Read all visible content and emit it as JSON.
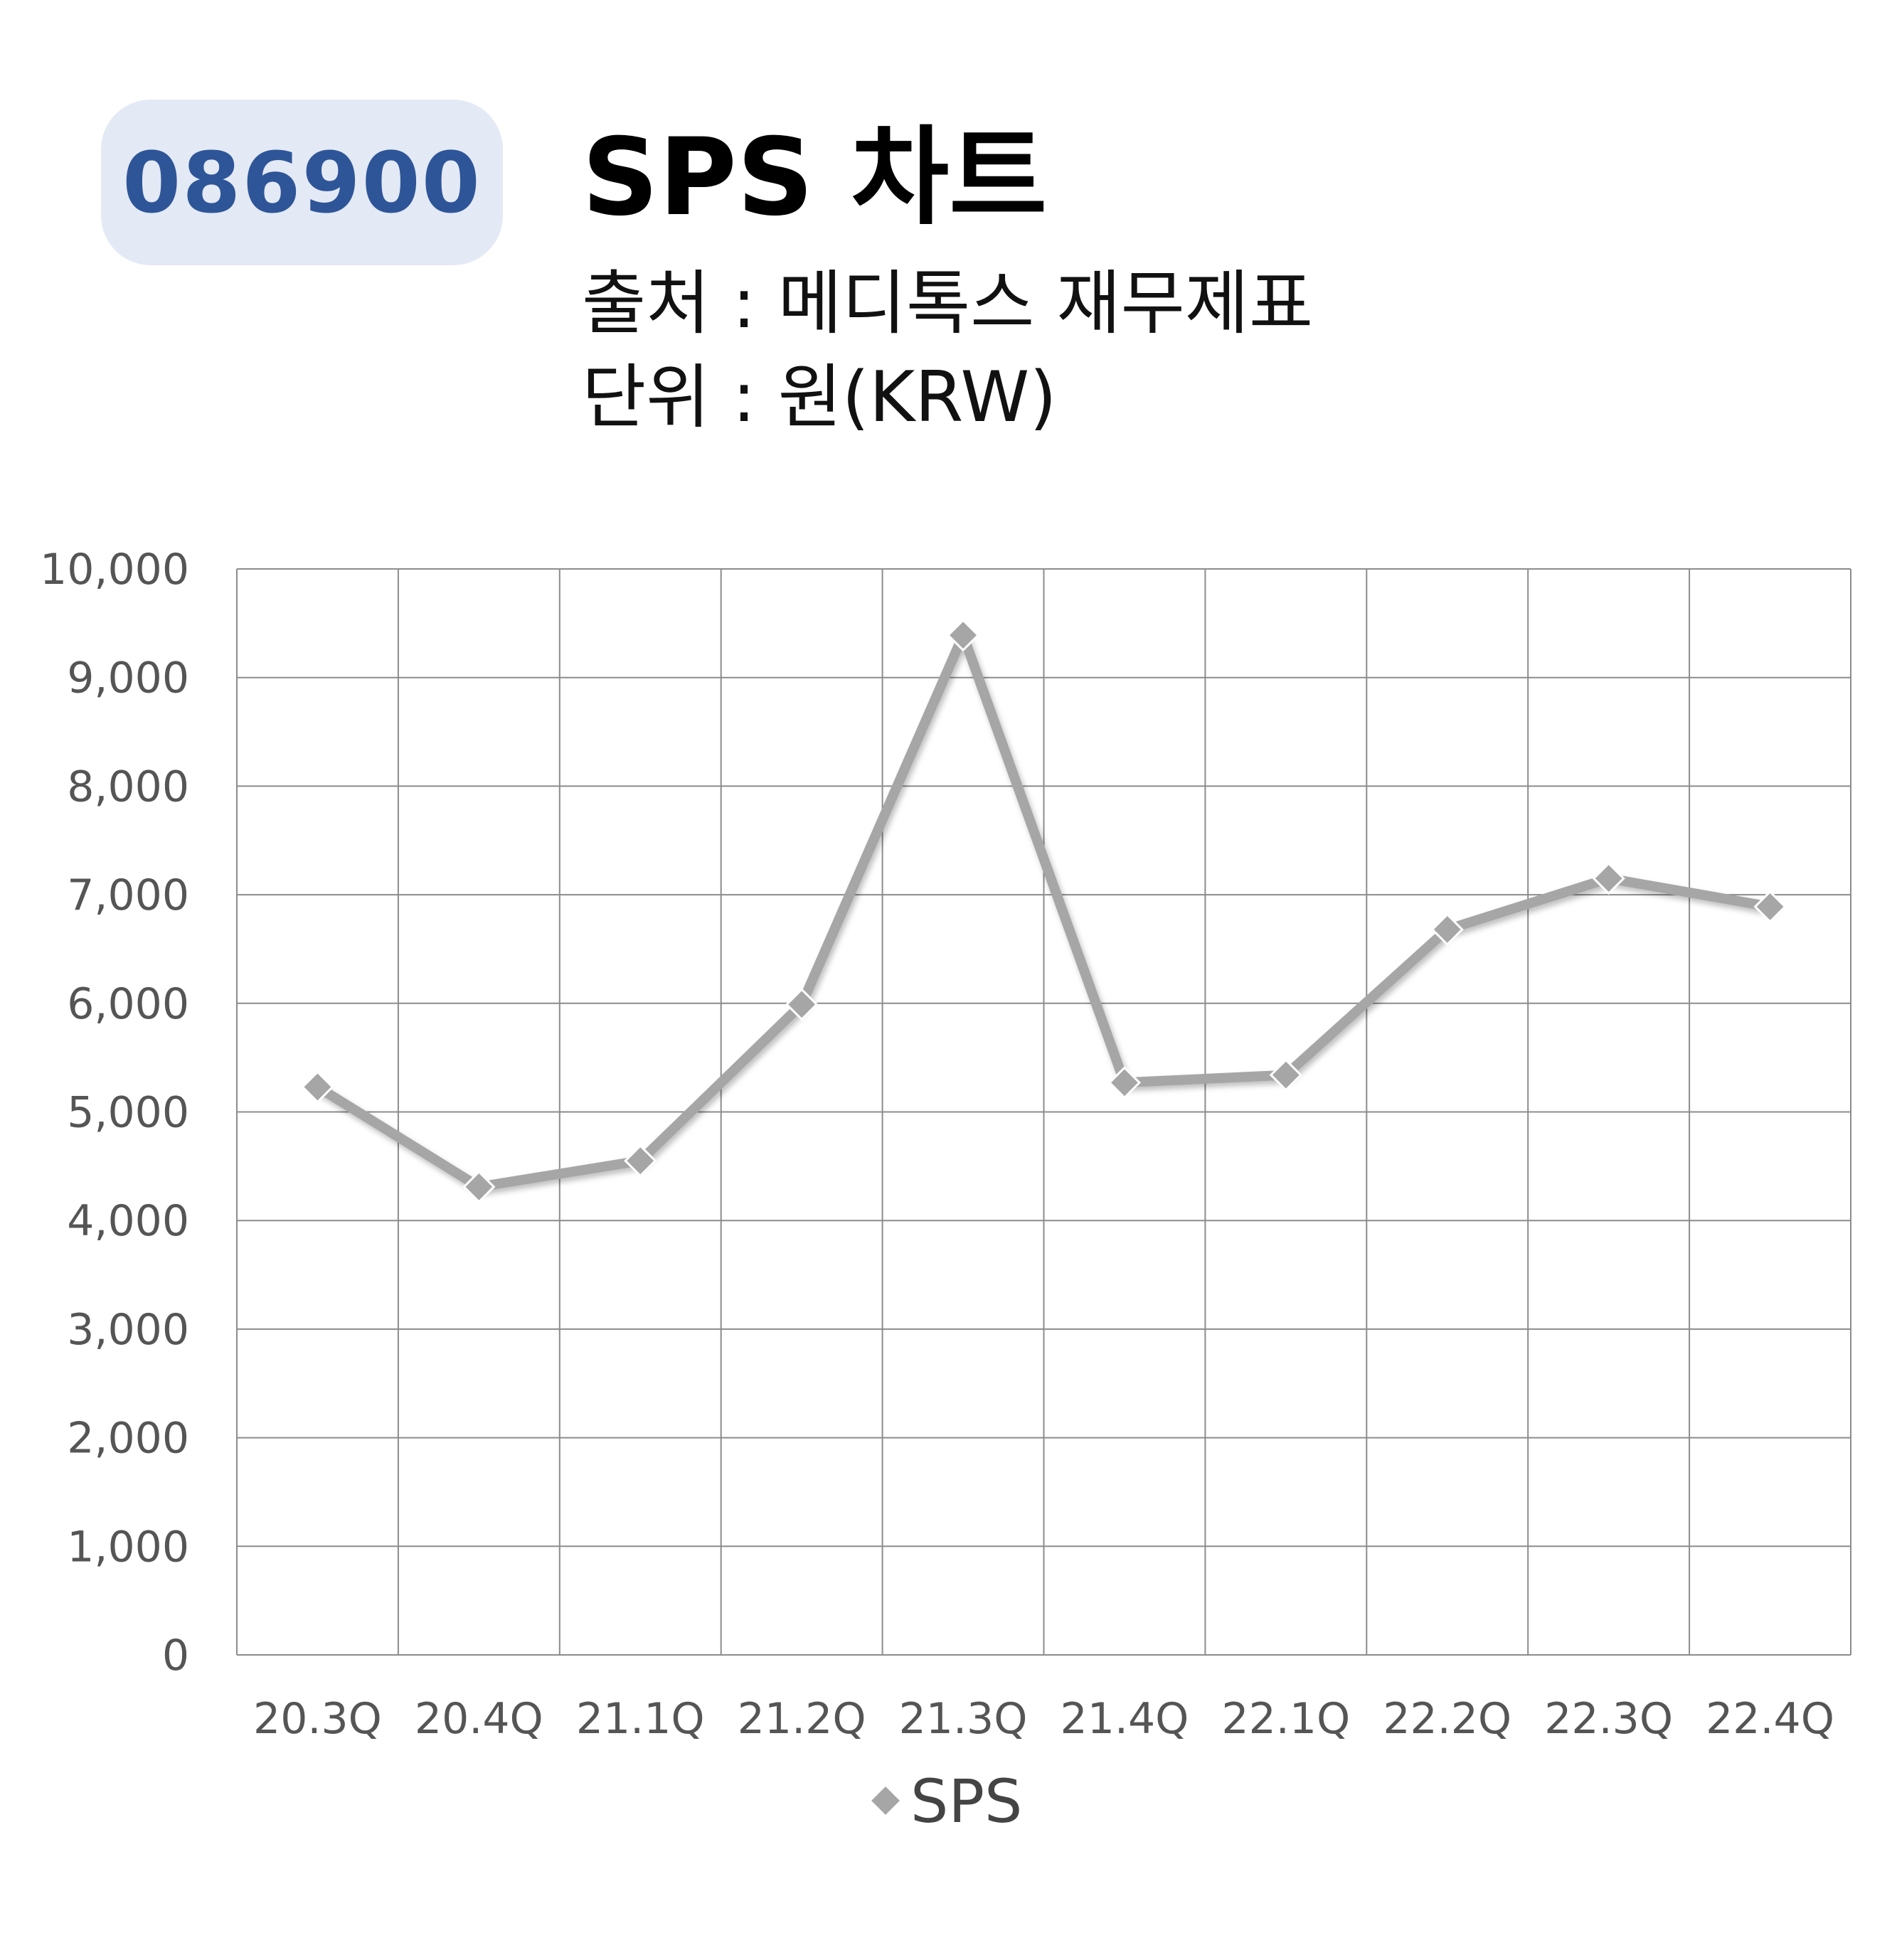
{
  "header": {
    "ticker": "086900",
    "title": "SPS 차트",
    "source": "출처 : 메디톡스 재무제표",
    "unit": "단위 : 원(KRW)"
  },
  "chart_data": {
    "type": "line",
    "categories": [
      "20.3Q",
      "20.4Q",
      "21.1Q",
      "21.2Q",
      "21.3Q",
      "21.4Q",
      "22.1Q",
      "22.2Q",
      "22.3Q",
      "22.4Q"
    ],
    "series": [
      {
        "name": "SPS",
        "values": [
          5230,
          4310,
          4550,
          5990,
          9390,
          5270,
          5340,
          6680,
          7150,
          6890
        ],
        "color": "#a6a6a6",
        "marker": "diamond"
      }
    ],
    "y_ticks": [
      "0",
      "1,000",
      "2,000",
      "3,000",
      "4,000",
      "5,000",
      "6,000",
      "7,000",
      "8,000",
      "9,000",
      "10,000"
    ],
    "ylim": [
      0,
      10000
    ],
    "grid": true,
    "legend_position": "bottom"
  }
}
